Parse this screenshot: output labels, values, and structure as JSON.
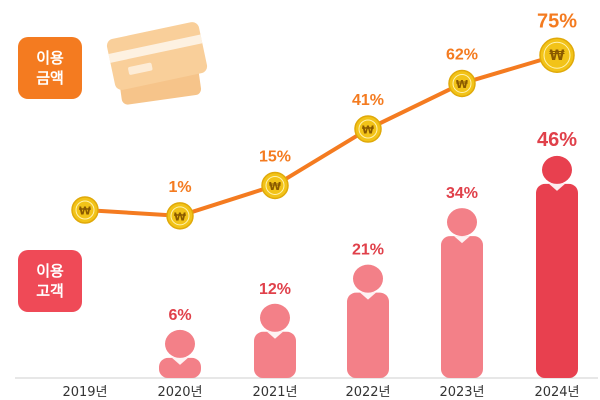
{
  "labels": {
    "amount_line1": "이용",
    "amount_line2": "금액",
    "users_line1": "이용",
    "users_line2": "고객"
  },
  "colors": {
    "amount": "#f47b20",
    "users_bar": "#f38088",
    "users_bar_highlight": "#e8404f",
    "users_label": "#e0404a",
    "coin": "#f2c318",
    "axis_text": "#333333"
  },
  "icons": [
    "credit-card-icon",
    "won-coin-icon",
    "person-icon"
  ],
  "chart_data": {
    "type": "bar+line",
    "categories": [
      "2019년",
      "2020년",
      "2021년",
      "2022년",
      "2023년",
      "2024년"
    ],
    "series": [
      {
        "name": "이용 금액",
        "type": "line",
        "values": [
          null,
          1,
          15,
          41,
          62,
          75
        ],
        "labels": [
          "",
          "1%",
          "15%",
          "41%",
          "62%",
          "75%"
        ]
      },
      {
        "name": "이용 고객",
        "type": "bar",
        "values": [
          0,
          6,
          12,
          21,
          34,
          46
        ],
        "labels": [
          "",
          "6%",
          "12%",
          "21%",
          "34%",
          "46%"
        ]
      }
    ],
    "title": "",
    "xlabel": "",
    "ylabel": ""
  }
}
